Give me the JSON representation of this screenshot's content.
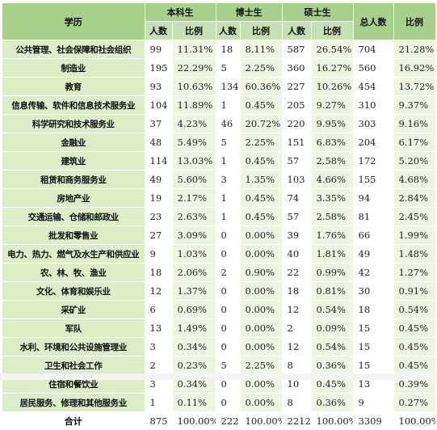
{
  "header": {
    "corner": "学历",
    "groups": [
      "本科生",
      "博士生",
      "硕士生"
    ],
    "total_count": "总人数",
    "total_ratio": "比例",
    "sub": [
      "人数",
      "比例",
      "人数",
      "比例",
      "人数",
      "比例"
    ]
  },
  "rows": [
    {
      "label": "公共管理、社会保障和社会组织",
      "v": [
        "99",
        "11.31%",
        "18",
        "8.11%",
        "587",
        "26.54%",
        "704",
        "21.28%"
      ]
    },
    {
      "label": "制造业",
      "v": [
        "195",
        "22.29%",
        "5",
        "2.25%",
        "360",
        "16.27%",
        "560",
        "16.92%"
      ]
    },
    {
      "label": "教育",
      "v": [
        "93",
        "10.63%",
        "134",
        "60.36%",
        "227",
        "10.26%",
        "454",
        "13.72%"
      ]
    },
    {
      "label": "信息传输、软件和信息技术服务业",
      "v": [
        "104",
        "11.89%",
        "1",
        "0.45%",
        "205",
        "9.27%",
        "310",
        "9.37%"
      ]
    },
    {
      "label": "科学研究和技术服务业",
      "v": [
        "37",
        "4.23%",
        "46",
        "20.72%",
        "220",
        "9.95%",
        "303",
        "9.16%"
      ]
    },
    {
      "label": "金融业",
      "v": [
        "48",
        "5.49%",
        "5",
        "2.25%",
        "151",
        "6.83%",
        "204",
        "6.17%"
      ]
    },
    {
      "label": "建筑业",
      "v": [
        "114",
        "13.03%",
        "1",
        "0.45%",
        "57",
        "2.58%",
        "172",
        "5.20%"
      ]
    },
    {
      "label": "租赁和商务服务业",
      "v": [
        "49",
        "5.60%",
        "3",
        "1.35%",
        "103",
        "4.66%",
        "155",
        "4.68%"
      ]
    },
    {
      "label": "房地产业",
      "v": [
        "19",
        "2.17%",
        "1",
        "0.45%",
        "74",
        "3.35%",
        "94",
        "2.84%"
      ]
    },
    {
      "label": "交通运输、仓储和邮政业",
      "v": [
        "23",
        "2.63%",
        "1",
        "0.45%",
        "57",
        "2.58%",
        "81",
        "2.45%"
      ]
    },
    {
      "label": "批发和零售业",
      "v": [
        "27",
        "3.09%",
        "0",
        "0.00%",
        "39",
        "1.76%",
        "66",
        "1.99%"
      ]
    },
    {
      "label": "电力、热力、燃气及水生产和供应业",
      "v": [
        "9",
        "1.03%",
        "0",
        "0.00%",
        "40",
        "1.81%",
        "49",
        "1.48%"
      ]
    },
    {
      "label": "农、林、牧、渔业",
      "v": [
        "18",
        "2.06%",
        "2",
        "0.90%",
        "22",
        "0.99%",
        "42",
        "1.27%"
      ]
    },
    {
      "label": "文化、体育和娱乐业",
      "v": [
        "12",
        "1.37%",
        "0",
        "0.00%",
        "18",
        "0.81%",
        "30",
        "0.91%"
      ]
    },
    {
      "label": "采矿业",
      "v": [
        "6",
        "0.69%",
        "0",
        "0.00%",
        "12",
        "0.54%",
        "18",
        "0.54%"
      ]
    },
    {
      "label": "军队",
      "v": [
        "13",
        "1.49%",
        "0",
        "0.00%",
        "2",
        "0.09%",
        "15",
        "0.45%"
      ]
    },
    {
      "label": "水利、环境和公共设施管理业",
      "v": [
        "3",
        "0.34%",
        "0",
        "0.00%",
        "12",
        "0.54%",
        "15",
        "0.45%"
      ]
    },
    {
      "label": "卫生和社会工作",
      "v": [
        "2",
        "0.23%",
        "5",
        "2.25%",
        "8",
        "0.36%",
        "15",
        "0.45%"
      ]
    },
    {
      "label": "住宿和餐饮业",
      "v": [
        "3",
        "0.34%",
        "0",
        "0.00%",
        "10",
        "0.45%",
        "13",
        "0.39%"
      ]
    },
    {
      "label": "居民服务、修理和其他服务业",
      "v": [
        "1",
        "0.11%",
        "0",
        "0.00%",
        "8",
        "0.36%",
        "9",
        "0.27%"
      ]
    }
  ],
  "total": {
    "label": "合计",
    "v": [
      "875",
      "100.00%",
      "222",
      "100.00%",
      "2212",
      "100.00%",
      "3309",
      "100.00%"
    ]
  },
  "colors": {
    "header": "#a8d08d",
    "subheader": "#c5e0b3",
    "row_label": "#dcedc8",
    "pct_cell": "#eef6e2"
  }
}
